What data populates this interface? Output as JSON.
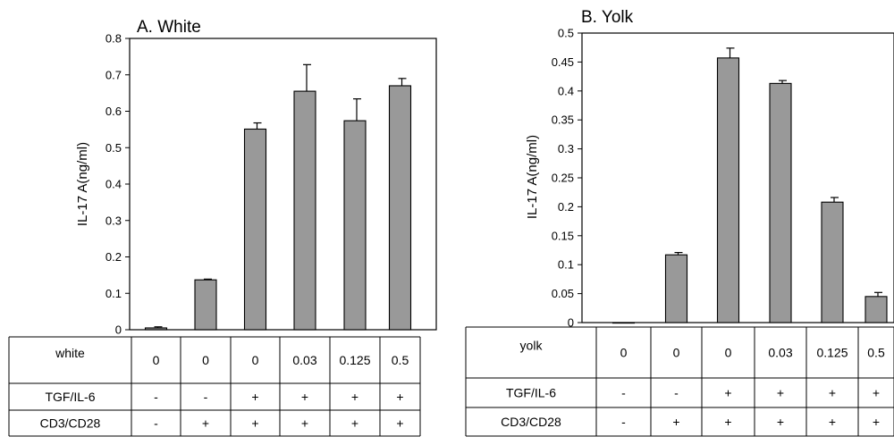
{
  "chart_data": [
    {
      "type": "bar",
      "title": "A. White",
      "xlabel": "",
      "ylabel": "IL-17 A(ng/ml)",
      "ylim": [
        0,
        0.8
      ],
      "yticks": [
        "0",
        "0.1",
        "0.2",
        "0.3",
        "0.4",
        "0.5",
        "0.6",
        "0.7",
        "0.8"
      ],
      "grid": false,
      "bar_color": "#999999",
      "values": [
        0.005,
        0.137,
        0.551,
        0.655,
        0.574,
        0.67
      ],
      "errors": [
        0.003,
        0.002,
        0.017,
        0.073,
        0.06,
        0.02
      ],
      "table": {
        "rows": [
          {
            "label": "white",
            "cells": [
              "0",
              "0",
              "0",
              "0.03",
              "0.125",
              "0.5"
            ]
          },
          {
            "label": "TGF/IL-6",
            "cells": [
              "-",
              "-",
              "+",
              "+",
              "+",
              "+"
            ]
          },
          {
            "label": "CD3/CD28",
            "cells": [
              "-",
              "+",
              "+",
              "+",
              "+",
              "+"
            ]
          }
        ]
      }
    },
    {
      "type": "bar",
      "title": "B. Yolk",
      "xlabel": "",
      "ylabel": "IL-17 A(ng/ml)",
      "ylim": [
        0,
        0.5
      ],
      "yticks": [
        "0",
        "0.05",
        "0.1",
        "0.15",
        "0.2",
        "0.25",
        "0.3",
        "0.35",
        "0.4",
        "0.45",
        "0.5"
      ],
      "grid": false,
      "bar_color": "#999999",
      "values": [
        0.0,
        0.117,
        0.457,
        0.413,
        0.208,
        0.045
      ],
      "errors": [
        0.0,
        0.004,
        0.017,
        0.005,
        0.008,
        0.007
      ],
      "table": {
        "rows": [
          {
            "label": "yolk",
            "cells": [
              "0",
              "0",
              "0",
              "0.03",
              "0.125",
              "0.5"
            ]
          },
          {
            "label": "TGF/IL-6",
            "cells": [
              "-",
              "-",
              "+",
              "+",
              "+",
              "+"
            ]
          },
          {
            "label": "CD3/CD28",
            "cells": [
              "-",
              "+",
              "+",
              "+",
              "+",
              "+"
            ]
          }
        ]
      }
    }
  ]
}
